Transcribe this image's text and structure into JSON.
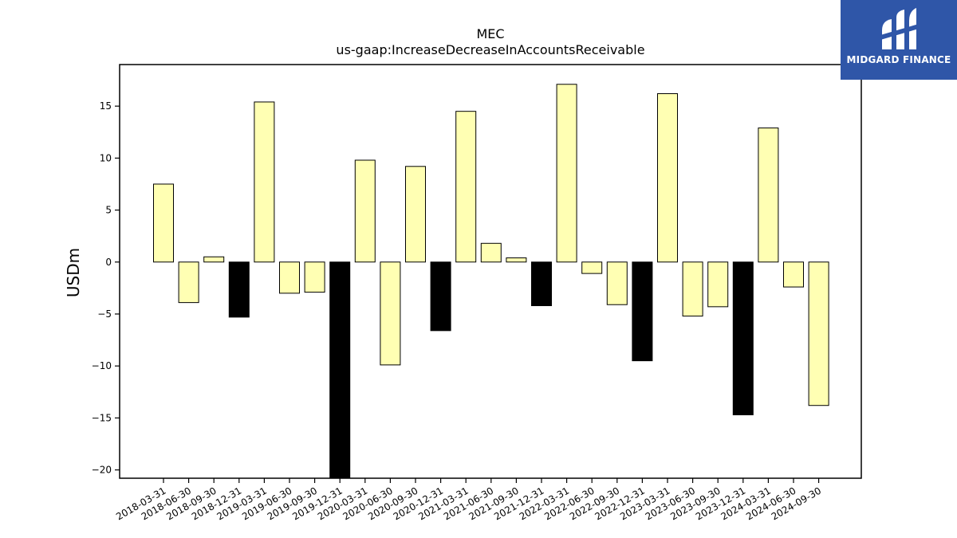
{
  "chart_data": {
    "type": "bar",
    "title": "MEC",
    "subtitle": "us-gaap:IncreaseDecreaseInAccountsReceivable",
    "xlabel": "",
    "ylabel": "USDm",
    "ylim": [
      -20.8,
      19
    ],
    "yticks": [
      -20,
      -15,
      -10,
      -5,
      0,
      5,
      10,
      15
    ],
    "grid": false,
    "categories": [
      "2018-03-31",
      "2018-06-30",
      "2018-09-30",
      "2018-12-31",
      "2019-03-31",
      "2019-06-30",
      "2019-09-30",
      "2019-12-31",
      "2020-03-31",
      "2020-06-30",
      "2020-09-30",
      "2020-12-31",
      "2021-03-31",
      "2021-06-30",
      "2021-09-30",
      "2021-12-31",
      "2022-03-31",
      "2022-06-30",
      "2022-09-30",
      "2022-12-31",
      "2023-03-31",
      "2023-06-30",
      "2023-09-30",
      "2023-12-31",
      "2024-03-31",
      "2024-06-30",
      "2024-09-30"
    ],
    "values": [
      7.5,
      -3.9,
      0.5,
      -5.3,
      15.4,
      -3.0,
      -2.9,
      -20.8,
      9.8,
      -9.9,
      9.2,
      -6.6,
      14.5,
      1.8,
      0.4,
      -4.2,
      17.1,
      -1.1,
      -4.1,
      -9.5,
      16.2,
      -5.2,
      -4.3,
      -14.7,
      12.9,
      -2.4,
      -13.8
    ],
    "colors": {
      "quarter": "#ffffb3",
      "year_end": "#000000",
      "edge": "#000000"
    }
  },
  "logo": {
    "text": "MIDGARD FINANCE",
    "background": "#2f56a8"
  }
}
